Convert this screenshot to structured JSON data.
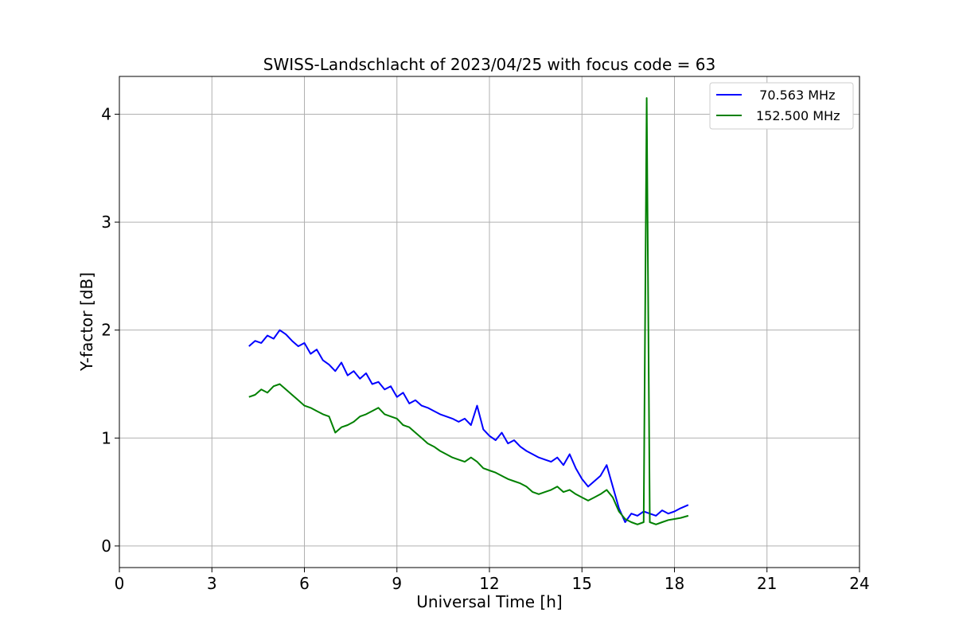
{
  "chart_data": {
    "type": "line",
    "title": "SWISS-Landschlacht of 2023/04/25 with focus code = 63",
    "xlabel": "Universal Time [h]",
    "ylabel": "Y-factor [dB]",
    "xlim": [
      0,
      24
    ],
    "ylim": [
      -0.2,
      4.35
    ],
    "xticks": [
      0,
      3,
      6,
      9,
      12,
      15,
      18,
      21,
      24
    ],
    "xtick_labels": [
      "0",
      "3",
      "6",
      "9",
      "12",
      "15",
      "18",
      "21",
      "24"
    ],
    "yticks": [
      0,
      1,
      2,
      3,
      4
    ],
    "ytick_labels": [
      "0",
      "1",
      "2",
      "3",
      "4"
    ],
    "grid": true,
    "legend_position": "top-right",
    "series": [
      {
        "name": "  70.563 MHz",
        "color": "#0000ff",
        "x": [
          4.2,
          4.4,
          4.6,
          4.8,
          5.0,
          5.2,
          5.4,
          5.6,
          5.8,
          6.0,
          6.2,
          6.4,
          6.6,
          6.8,
          7.0,
          7.2,
          7.4,
          7.6,
          7.8,
          8.0,
          8.2,
          8.4,
          8.6,
          8.8,
          9.0,
          9.2,
          9.4,
          9.6,
          9.8,
          10.0,
          10.2,
          10.4,
          10.6,
          10.8,
          11.0,
          11.2,
          11.4,
          11.6,
          11.8,
          12.0,
          12.2,
          12.4,
          12.6,
          12.8,
          13.0,
          13.2,
          13.4,
          13.6,
          13.8,
          14.0,
          14.2,
          14.4,
          14.6,
          14.8,
          15.0,
          15.2,
          15.4,
          15.6,
          15.8,
          16.0,
          16.2,
          16.4,
          16.6,
          16.8,
          17.0,
          17.2,
          17.4,
          17.6,
          17.8,
          18.0,
          18.2,
          18.45
        ],
        "y": [
          1.85,
          1.9,
          1.88,
          1.95,
          1.92,
          2.0,
          1.96,
          1.9,
          1.85,
          1.88,
          1.78,
          1.82,
          1.72,
          1.68,
          1.62,
          1.7,
          1.58,
          1.62,
          1.55,
          1.6,
          1.5,
          1.52,
          1.45,
          1.48,
          1.38,
          1.42,
          1.32,
          1.35,
          1.3,
          1.28,
          1.25,
          1.22,
          1.2,
          1.18,
          1.15,
          1.18,
          1.12,
          1.3,
          1.08,
          1.02,
          0.98,
          1.05,
          0.95,
          0.98,
          0.92,
          0.88,
          0.85,
          0.82,
          0.8,
          0.78,
          0.82,
          0.75,
          0.85,
          0.72,
          0.62,
          0.55,
          0.6,
          0.65,
          0.75,
          0.55,
          0.35,
          0.22,
          0.3,
          0.28,
          0.32,
          0.3,
          0.28,
          0.33,
          0.3,
          0.32,
          0.35,
          0.38
        ]
      },
      {
        "name": "152.500 MHz",
        "color": "#008000",
        "x": [
          4.2,
          4.4,
          4.6,
          4.8,
          5.0,
          5.2,
          5.4,
          5.6,
          5.8,
          6.0,
          6.2,
          6.4,
          6.6,
          6.8,
          7.0,
          7.2,
          7.4,
          7.6,
          7.8,
          8.0,
          8.2,
          8.4,
          8.6,
          8.8,
          9.0,
          9.2,
          9.4,
          9.6,
          9.8,
          10.0,
          10.2,
          10.4,
          10.6,
          10.8,
          11.0,
          11.2,
          11.4,
          11.6,
          11.8,
          12.0,
          12.2,
          12.4,
          12.6,
          12.8,
          13.0,
          13.2,
          13.4,
          13.6,
          13.8,
          14.0,
          14.2,
          14.4,
          14.6,
          14.8,
          15.0,
          15.2,
          15.4,
          15.6,
          15.8,
          16.0,
          16.2,
          16.4,
          16.6,
          16.8,
          17.0,
          17.1,
          17.2,
          17.4,
          17.6,
          17.8,
          18.0,
          18.2,
          18.45
        ],
        "y": [
          1.38,
          1.4,
          1.45,
          1.42,
          1.48,
          1.5,
          1.45,
          1.4,
          1.35,
          1.3,
          1.28,
          1.25,
          1.22,
          1.2,
          1.05,
          1.1,
          1.12,
          1.15,
          1.2,
          1.22,
          1.25,
          1.28,
          1.22,
          1.2,
          1.18,
          1.12,
          1.1,
          1.05,
          1.0,
          0.95,
          0.92,
          0.88,
          0.85,
          0.82,
          0.8,
          0.78,
          0.82,
          0.78,
          0.72,
          0.7,
          0.68,
          0.65,
          0.62,
          0.6,
          0.58,
          0.55,
          0.5,
          0.48,
          0.5,
          0.52,
          0.55,
          0.5,
          0.52,
          0.48,
          0.45,
          0.42,
          0.45,
          0.48,
          0.52,
          0.45,
          0.32,
          0.25,
          0.22,
          0.2,
          0.22,
          4.15,
          0.22,
          0.2,
          0.22,
          0.24,
          0.25,
          0.26,
          0.28
        ]
      }
    ]
  }
}
